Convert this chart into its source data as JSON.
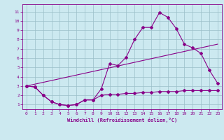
{
  "xlabel": "Windchill (Refroidissement éolien,°C)",
  "x_ticks": [
    0,
    1,
    2,
    3,
    4,
    5,
    6,
    7,
    8,
    9,
    10,
    11,
    12,
    13,
    14,
    15,
    16,
    17,
    18,
    19,
    20,
    21,
    22,
    23
  ],
  "y_ticks": [
    1,
    2,
    3,
    4,
    5,
    6,
    7,
    8,
    9,
    10,
    11
  ],
  "ylim": [
    0.5,
    11.8
  ],
  "xlim": [
    -0.5,
    23.5
  ],
  "bg_color": "#cce9f0",
  "line_color": "#880088",
  "grid_color": "#9bbfc8",
  "line1_x": [
    0,
    1,
    2,
    3,
    4,
    5,
    6,
    7,
    8,
    9,
    10,
    11,
    12,
    13,
    14,
    15,
    16,
    17,
    18,
    19,
    20,
    21,
    22,
    23
  ],
  "line1_y": [
    3.0,
    2.9,
    2.0,
    1.3,
    1.0,
    0.9,
    1.0,
    1.5,
    1.5,
    2.7,
    5.4,
    5.2,
    6.1,
    8.0,
    9.3,
    9.3,
    10.9,
    10.4,
    9.2,
    7.5,
    7.1,
    6.5,
    4.7,
    3.3
  ],
  "line2_x": [
    0,
    1,
    2,
    3,
    4,
    5,
    6,
    7,
    8,
    9,
    10,
    11,
    12,
    13,
    14,
    15,
    16,
    17,
    18,
    19,
    20,
    21,
    22,
    23
  ],
  "line2_y": [
    3.0,
    2.9,
    2.0,
    1.3,
    1.0,
    0.9,
    1.0,
    1.5,
    1.5,
    2.0,
    2.1,
    2.1,
    2.2,
    2.2,
    2.3,
    2.3,
    2.4,
    2.4,
    2.4,
    2.5,
    2.5,
    2.5,
    2.5,
    2.5
  ],
  "line3_x": [
    0,
    23
  ],
  "line3_y": [
    3.0,
    7.5
  ]
}
